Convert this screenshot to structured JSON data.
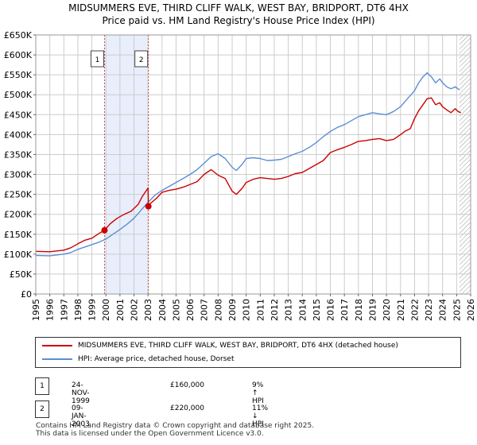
{
  "title_line1": "MIDSUMMERS EVE, THIRD CLIFF WALK, WEST BAY, BRIDPORT, DT6 4HX",
  "title_line2": "Price paid vs. HM Land Registry's House Price Index (HPI)",
  "colors": {
    "property": "#cc0000",
    "hpi": "#5b8fd4",
    "shade": "#e8eefb",
    "grid": "#cccccc"
  },
  "chart_data": {
    "type": "line",
    "xlim": [
      1995,
      2026
    ],
    "ylim": [
      0,
      650000
    ],
    "x_ticks": [
      "1995",
      "1996",
      "1997",
      "1998",
      "1999",
      "2000",
      "2001",
      "2002",
      "2003",
      "2004",
      "2005",
      "2006",
      "2007",
      "2008",
      "2009",
      "2010",
      "2011",
      "2012",
      "2013",
      "2014",
      "2015",
      "2016",
      "2017",
      "2018",
      "2019",
      "2020",
      "2021",
      "2022",
      "2023",
      "2024",
      "2025",
      "2026"
    ],
    "y_ticks": [
      {
        "value": 0,
        "label": "£0"
      },
      {
        "value": 50000,
        "label": "£50K"
      },
      {
        "value": 100000,
        "label": "£100K"
      },
      {
        "value": 150000,
        "label": "£150K"
      },
      {
        "value": 200000,
        "label": "£200K"
      },
      {
        "value": 250000,
        "label": "£250K"
      },
      {
        "value": 300000,
        "label": "£300K"
      },
      {
        "value": 350000,
        "label": "£350K"
      },
      {
        "value": 400000,
        "label": "£400K"
      },
      {
        "value": 450000,
        "label": "£450K"
      },
      {
        "value": 500000,
        "label": "£500K"
      },
      {
        "value": 550000,
        "label": "£550K"
      },
      {
        "value": 600000,
        "label": "£600K"
      },
      {
        "value": 650000,
        "label": "£650K"
      }
    ],
    "shaded_period": [
      1999.9,
      2003.03
    ],
    "hatched_from": 2025.2,
    "annotations": [
      {
        "label": "1",
        "x": 1999.9
      },
      {
        "label": "2",
        "x": 2003.03
      }
    ],
    "series": [
      {
        "name": "MIDSUMMERS EVE, THIRD CLIFF WALK, WEST BAY, BRIDPORT, DT6 4HX (detached house)",
        "color": "#cc0000",
        "x": [
          1995.0,
          1996.0,
          1997.0,
          1997.5,
          1998.0,
          1998.5,
          1999.0,
          1999.5,
          1999.9,
          2000.3,
          2000.8,
          2001.3,
          2001.8,
          2002.3,
          2002.6,
          2003.0,
          2003.03,
          2003.2,
          2003.6,
          2004.0,
          2004.5,
          2005.0,
          2005.5,
          2006.0,
          2006.5,
          2007.0,
          2007.5,
          2008.0,
          2008.5,
          2009.0,
          2009.3,
          2009.7,
          2010.0,
          2010.5,
          2011.0,
          2011.5,
          2012.0,
          2012.5,
          2013.0,
          2013.5,
          2014.0,
          2014.5,
          2015.0,
          2015.5,
          2016.0,
          2016.5,
          2017.0,
          2017.5,
          2018.0,
          2018.5,
          2019.0,
          2019.5,
          2020.0,
          2020.5,
          2021.0,
          2021.3,
          2021.7,
          2022.0,
          2022.3,
          2022.6,
          2022.9,
          2023.2,
          2023.5,
          2023.8,
          2024.0,
          2024.3,
          2024.6,
          2024.9,
          2025.1,
          2025.3
        ],
        "values": [
          107000,
          106000,
          110000,
          116000,
          126000,
          135000,
          140000,
          152000,
          160000,
          176000,
          190000,
          200000,
          208000,
          225000,
          245000,
          266000,
          220000,
          228000,
          240000,
          255000,
          260000,
          263000,
          268000,
          275000,
          282000,
          300000,
          312000,
          298000,
          290000,
          258000,
          250000,
          265000,
          280000,
          288000,
          292000,
          290000,
          288000,
          290000,
          295000,
          302000,
          305000,
          315000,
          325000,
          335000,
          355000,
          362000,
          368000,
          375000,
          383000,
          385000,
          388000,
          390000,
          385000,
          388000,
          400000,
          408000,
          415000,
          440000,
          460000,
          475000,
          490000,
          492000,
          475000,
          480000,
          470000,
          462000,
          455000,
          465000,
          458000,
          455000
        ]
      },
      {
        "name": "HPI: Average price, detached house, Dorset",
        "color": "#5b8fd4",
        "x": [
          1995.0,
          1996.0,
          1997.0,
          1997.5,
          1998.0,
          1998.5,
          1999.0,
          1999.5,
          2000.0,
          2000.5,
          2001.0,
          2001.5,
          2002.0,
          2002.5,
          2003.0,
          2003.5,
          2004.0,
          2004.5,
          2005.0,
          2005.5,
          2006.0,
          2006.5,
          2007.0,
          2007.5,
          2008.0,
          2008.5,
          2009.0,
          2009.3,
          2009.7,
          2010.0,
          2010.5,
          2011.0,
          2011.5,
          2012.0,
          2012.5,
          2013.0,
          2013.5,
          2014.0,
          2014.5,
          2015.0,
          2015.5,
          2016.0,
          2016.5,
          2017.0,
          2017.5,
          2018.0,
          2018.5,
          2019.0,
          2019.5,
          2020.0,
          2020.5,
          2021.0,
          2021.5,
          2022.0,
          2022.3,
          2022.6,
          2022.9,
          2023.2,
          2023.5,
          2023.8,
          2024.0,
          2024.3,
          2024.6,
          2024.9,
          2025.2
        ],
        "values": [
          97000,
          96000,
          100000,
          104000,
          112000,
          118000,
          124000,
          130000,
          138000,
          150000,
          162000,
          175000,
          190000,
          210000,
          230000,
          248000,
          260000,
          270000,
          280000,
          290000,
          300000,
          312000,
          328000,
          345000,
          352000,
          340000,
          318000,
          310000,
          325000,
          340000,
          342000,
          340000,
          335000,
          336000,
          338000,
          345000,
          352000,
          358000,
          368000,
          380000,
          395000,
          408000,
          418000,
          425000,
          435000,
          445000,
          450000,
          455000,
          452000,
          450000,
          458000,
          470000,
          490000,
          510000,
          530000,
          545000,
          555000,
          545000,
          530000,
          540000,
          530000,
          520000,
          515000,
          520000,
          512000
        ]
      }
    ],
    "sales": [
      {
        "x": 1999.9,
        "value": 160000
      },
      {
        "x": 2003.03,
        "value": 220000
      }
    ]
  },
  "legend": {
    "property_label": "MIDSUMMERS EVE, THIRD CLIFF WALK, WEST BAY, BRIDPORT, DT6 4HX (detached house)",
    "hpi_label": "HPI: Average price, detached house, Dorset"
  },
  "sales_table": [
    {
      "num": "1",
      "date": "24-NOV-1999",
      "price": "£160,000",
      "hpi": "9% ↑ HPI"
    },
    {
      "num": "2",
      "date": "09-JAN-2003",
      "price": "£220,000",
      "hpi": "11% ↓ HPI"
    }
  ],
  "footer_line1": "Contains HM Land Registry data © Crown copyright and database right 2025.",
  "footer_line2": "This data is licensed under the Open Government Licence v3.0."
}
